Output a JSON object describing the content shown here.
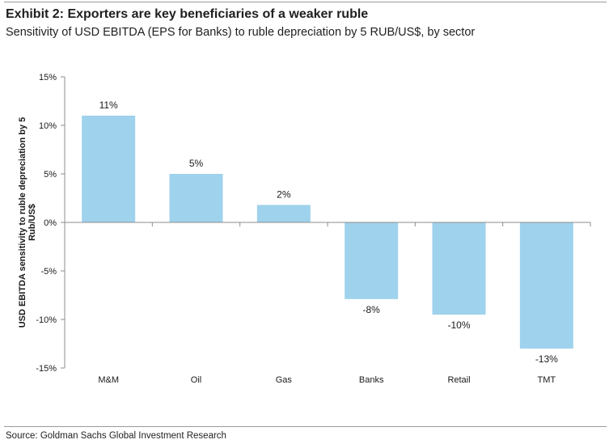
{
  "header": {
    "title": "Exhibit 2: Exporters are key beneficiaries of a weaker ruble",
    "subtitle": "Sensitivity of USD EBITDA (EPS for Banks) to ruble depreciation by 5 RUB/US$, by sector"
  },
  "footer": {
    "source": "Source: Goldman Sachs Global Investment Research"
  },
  "chart_data": {
    "type": "bar",
    "title": "Exhibit 2: Exporters are key beneficiaries of a weaker ruble",
    "xlabel": "",
    "ylabel": "USD EBITDA sensitivity to ruble depreciation by 5 Rub/US$",
    "ylabel_lines": [
      "USD EBITDA sensitivity to ruble depreciation by 5",
      "Rub/US$"
    ],
    "categories": [
      "M&M",
      "Oil",
      "Gas",
      "Banks",
      "Retail",
      "TMT"
    ],
    "values": [
      11,
      5,
      1.8,
      -7.9,
      -9.5,
      -13
    ],
    "data_labels": [
      "11%",
      "5%",
      "2%",
      "-8%",
      "-10%",
      "-13%"
    ],
    "ylim": [
      -15,
      15
    ],
    "yticks": [
      15,
      10,
      5,
      0,
      -5,
      -10,
      -15
    ],
    "ytick_labels": [
      "15%",
      "10%",
      "5%",
      "0%",
      "-5%",
      "-10%",
      "-15%"
    ],
    "grid": false,
    "bar_color": "#9fd2ec",
    "axis_color": "#8c8c8c"
  }
}
